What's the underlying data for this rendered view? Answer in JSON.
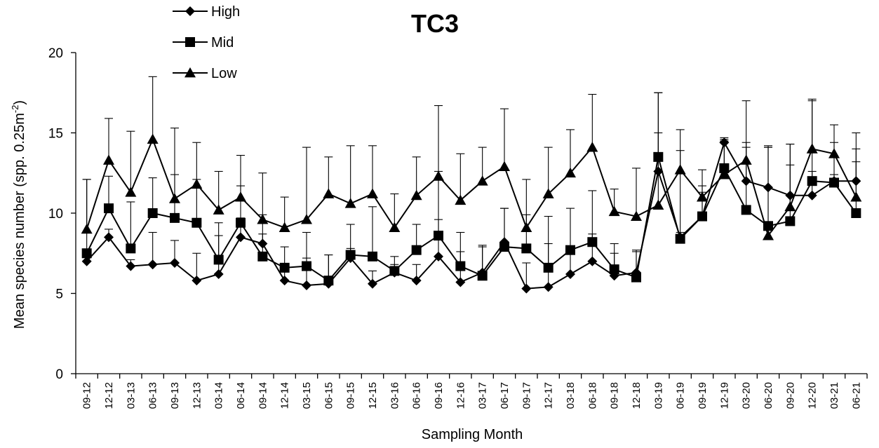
{
  "chart_data": {
    "type": "line",
    "title": "TC3",
    "xlabel": "Sampling Month",
    "ylabel_main": "Mean species number (spp. 0.25m",
    "ylabel_sup": "-2",
    "ylabel_end": ")",
    "ylim": [
      0,
      20
    ],
    "yticks": [
      0,
      5,
      10,
      15,
      20
    ],
    "grid": false,
    "legend_position": "top-left",
    "categories": [
      "09-12",
      "12-12",
      "03-13",
      "06-13",
      "09-13",
      "12-13",
      "03-14",
      "06-14",
      "09-14",
      "12-14",
      "03-15",
      "06-15",
      "09-15",
      "12-15",
      "03-16",
      "06-16",
      "09-16",
      "12-16",
      "03-17",
      "06-17",
      "09-17",
      "12-17",
      "03-18",
      "06-18",
      "09-18",
      "12-18",
      "03-19",
      "06-19",
      "09-19",
      "12-19",
      "03-20",
      "06-20",
      "09-20",
      "12-20",
      "03-21",
      "06-21"
    ],
    "series": [
      {
        "name": "High",
        "marker": "diamond",
        "values": [
          7.0,
          8.5,
          6.7,
          6.8,
          6.9,
          5.8,
          6.2,
          8.5,
          8.1,
          5.8,
          5.5,
          5.6,
          7.2,
          5.6,
          6.3,
          5.8,
          7.3,
          5.7,
          6.3,
          8.2,
          5.3,
          5.4,
          6.2,
          7.0,
          6.1,
          6.3,
          12.6,
          8.5,
          9.8,
          14.4,
          12.0,
          11.6,
          11.1,
          11.1,
          12.0,
          12.0
        ],
        "errors": [
          0.3,
          0.5,
          0.4,
          2.0,
          1.4,
          1.7,
          2.4,
          1.2,
          0.6,
          0.6,
          1.7,
          1.8,
          0.6,
          0.8,
          0.5,
          1.0,
          2.3,
          1.9,
          1.6,
          2.1,
          1.6,
          2.7,
          1.6,
          1.7,
          1.4,
          1.3,
          2.4,
          0.3,
          1.5,
          0.3,
          2.4,
          2.5,
          1.9,
          1.5,
          0.4,
          1.2
        ]
      },
      {
        "name": "Mid",
        "marker": "square",
        "values": [
          7.5,
          10.3,
          7.8,
          10.0,
          9.7,
          9.4,
          7.1,
          9.4,
          7.3,
          6.6,
          6.7,
          5.8,
          7.4,
          7.3,
          6.4,
          7.7,
          8.6,
          6.7,
          6.1,
          7.9,
          7.8,
          6.6,
          7.7,
          8.2,
          6.5,
          6.0,
          13.5,
          8.4,
          9.8,
          12.8,
          10.2,
          9.2,
          9.5,
          12.0,
          11.9,
          10.0
        ],
        "errors": [
          4.6,
          2.0,
          2.9,
          2.2,
          2.7,
          2.7,
          2.3,
          2.3,
          2.6,
          1.3,
          2.1,
          1.6,
          1.9,
          3.1,
          0.9,
          1.6,
          4.0,
          2.1,
          1.9,
          2.4,
          2.1,
          3.2,
          2.6,
          3.2,
          1.6,
          1.7,
          4.0,
          5.5,
          1.9,
          1.8,
          3.9,
          5.0,
          4.8,
          5.1,
          2.5,
          4.0
        ]
      },
      {
        "name": "Low",
        "marker": "triangle",
        "values": [
          9.0,
          13.3,
          11.3,
          14.6,
          10.9,
          11.8,
          10.2,
          11.0,
          9.6,
          9.1,
          9.6,
          11.2,
          10.6,
          11.2,
          9.1,
          11.1,
          12.3,
          10.8,
          12.0,
          12.9,
          9.1,
          11.2,
          12.5,
          14.1,
          10.1,
          9.8,
          10.5,
          12.7,
          11.0,
          12.4,
          13.3,
          8.6,
          10.4,
          14.0,
          13.7,
          11.0
        ],
        "errors": [
          3.1,
          2.6,
          3.8,
          3.9,
          4.4,
          2.6,
          2.4,
          2.6,
          2.9,
          1.9,
          4.5,
          2.3,
          3.6,
          3.0,
          2.1,
          2.4,
          4.4,
          2.9,
          2.1,
          3.6,
          3.0,
          2.9,
          2.7,
          3.3,
          1.4,
          3.0,
          7.0,
          2.5,
          1.7,
          2.1,
          3.7,
          5.5,
          3.9,
          3.0,
          1.8,
          4.0
        ]
      }
    ]
  }
}
